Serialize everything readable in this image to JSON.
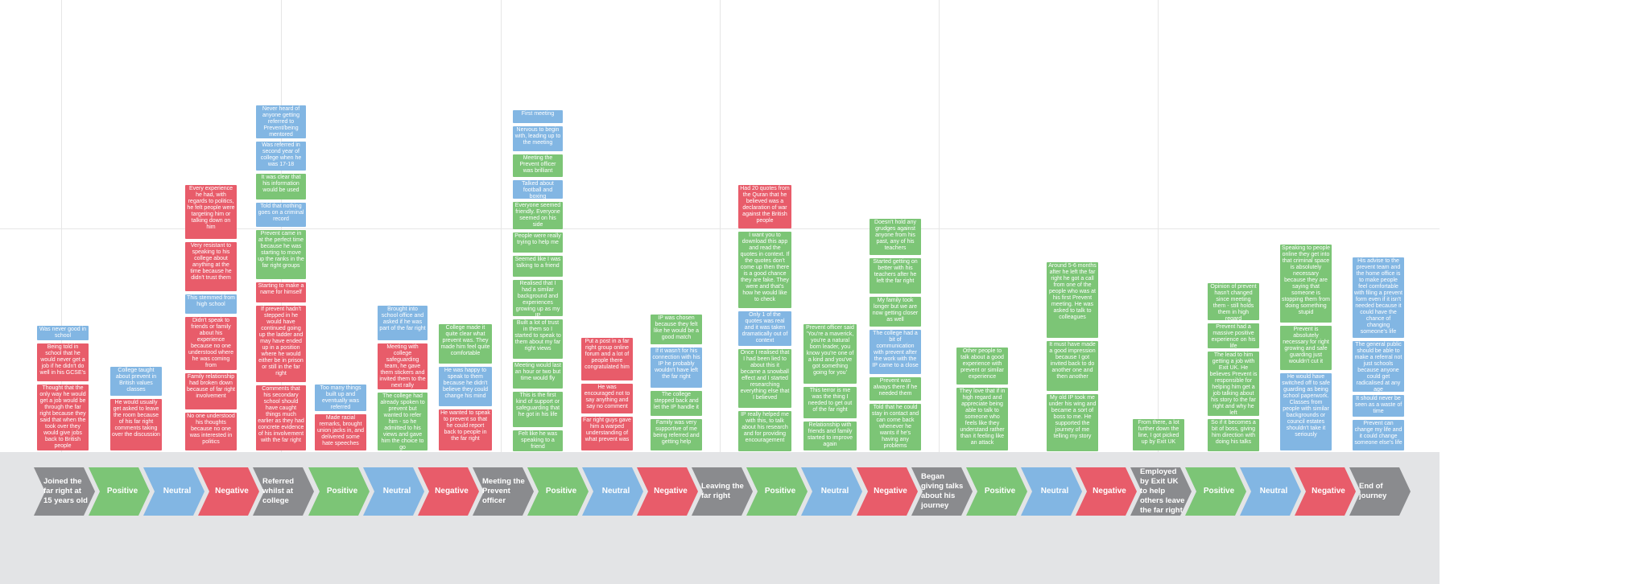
{
  "colors": {
    "positive": "#7cc576",
    "neutral": "#82b6e3",
    "negative": "#e85c6a",
    "stage": "#8a8b8e",
    "band": "#e3e4e6"
  },
  "timeline": [
    {
      "kind": "stage",
      "label": "Joined the far right at 15 years old"
    },
    {
      "kind": "positive",
      "label": "Positive"
    },
    {
      "kind": "neutral",
      "label": "Neutral"
    },
    {
      "kind": "negative",
      "label": "Negative"
    },
    {
      "kind": "stage",
      "label": "Referred whilst at college"
    },
    {
      "kind": "positive",
      "label": "Positive"
    },
    {
      "kind": "neutral",
      "label": "Neutral"
    },
    {
      "kind": "negative",
      "label": "Negative"
    },
    {
      "kind": "stage",
      "label": "Meeting the Prevent officer"
    },
    {
      "kind": "positive",
      "label": "Positive"
    },
    {
      "kind": "neutral",
      "label": "Neutral"
    },
    {
      "kind": "negative",
      "label": "Negative"
    },
    {
      "kind": "stage",
      "label": "Leaving the far right"
    },
    {
      "kind": "positive",
      "label": "Positive"
    },
    {
      "kind": "neutral",
      "label": "Neutral"
    },
    {
      "kind": "negative",
      "label": "Negative"
    },
    {
      "kind": "stage",
      "label": "Began giving talks about his journey"
    },
    {
      "kind": "positive",
      "label": "Positive"
    },
    {
      "kind": "neutral",
      "label": "Neutral"
    },
    {
      "kind": "negative",
      "label": "Negative"
    },
    {
      "kind": "stage",
      "label": "Employed by Exit UK to help others leave the far right"
    },
    {
      "kind": "positive",
      "label": "Positive"
    },
    {
      "kind": "neutral",
      "label": "Neutral"
    },
    {
      "kind": "negative",
      "label": "Negative"
    },
    {
      "kind": "stage",
      "label": "End of journey"
    }
  ],
  "columns": [
    {
      "cards": [
        {
          "s": "b",
          "t": "Was never good in school"
        },
        {
          "s": "r",
          "t": "Being told in school that he would never get a job if he didn't do well in his GCSE's"
        },
        {
          "s": "r",
          "t": "Thought that the only way he would get a job would be through the far right because they said that when the took over they would give jobs back to British people"
        }
      ]
    },
    {
      "cards": [
        {
          "s": "b",
          "t": "College taught about prevent in British values classes"
        },
        {
          "s": "r",
          "t": "He would usually get asked to leave the room because of his far right comments taking over the discussion"
        }
      ]
    },
    {
      "cards": [
        {
          "s": "r",
          "t": "Every experience he had, with regards to politics, he felt people were targeting him or talking down on him"
        },
        {
          "s": "r",
          "t": "Very resistant to speaking to his college about anything at the time because he didn't trust them"
        },
        {
          "s": "b",
          "t": "This stemmed from high school"
        },
        {
          "s": "r",
          "t": "Didn't speak to friends or family about his experience because no one understood where he was coming from"
        },
        {
          "s": "r",
          "t": "Family relationship had broken down because of far right involvement"
        },
        {
          "s": "r",
          "t": "No one understood his thoughts because no one was interested in politics"
        }
      ]
    },
    {
      "cards": [
        {
          "s": "b",
          "t": "Never heard of anyone getting referred to Prevent/being mentored"
        },
        {
          "s": "b",
          "t": "Was referred in second year of college when he was 17-18"
        },
        {
          "s": "g",
          "t": "It was clear that his information would be used"
        },
        {
          "s": "b",
          "t": "Told that nothing goes on a criminal record"
        },
        {
          "s": "g",
          "t": "Prevent came in at the perfect time because he was starting to move up the ranks in the far right groups"
        },
        {
          "s": "r",
          "t": "Starting to make a name for himself"
        },
        {
          "s": "r",
          "t": "If prevent hadn't stepped in he would have continued going up the ladder and may have ended up in a position where he would either be in prison or still in the far right"
        },
        {
          "s": "r",
          "t": "Comments that his secondary school should have caught things much earlier as they had concrete evidence of his involvement with the far right"
        }
      ]
    },
    {
      "cards": [
        {
          "s": "b",
          "t": "Too many things built up and eventually was referred"
        },
        {
          "s": "r",
          "t": "Made racial remarks, brought union jacks in, and delivered some hate speeches"
        }
      ]
    },
    {
      "cards": [
        {
          "s": "b",
          "t": "Brought into school office and asked if he was part of the far right"
        },
        {
          "s": "r",
          "t": "Meeting with college safeguarding team, he gave them stickers and invited them to the next rally"
        },
        {
          "s": "g",
          "t": "The college had already spoken to prevent but wanted to refer him - so he admitted to his views and gave him the choice to go"
        }
      ]
    },
    {
      "cards": [
        {
          "s": "g",
          "t": "College made it quite clear what prevent was. They made him feel quite comfortable"
        },
        {
          "s": "b",
          "t": "He was happy to speak to them because he didn't believe they could change his mind"
        },
        {
          "s": "r",
          "t": "He wanted to speak to prevent so that he could report back to people in the far right"
        }
      ]
    },
    {
      "cards": [
        {
          "s": "b",
          "t": "First meeting"
        },
        {
          "s": "b",
          "t": "Nervous to begin with, leading up to the meeting"
        },
        {
          "s": "g",
          "t": "Meeting the Prevent officer was brilliant"
        },
        {
          "s": "b",
          "t": "Talked about football and boxing"
        },
        {
          "s": "g",
          "t": "Everyone seemed friendly. Everyone seemed on his side"
        },
        {
          "s": "g",
          "t": "People were really trying to help me"
        },
        {
          "s": "g",
          "t": "Seemed like I was talking to a friend"
        },
        {
          "s": "g",
          "t": "Realised that I had a similar background and experiences growing up as my IP"
        },
        {
          "s": "g",
          "t": "Built a lot of trust in them so I started to speak to them about my far right views"
        },
        {
          "s": "g",
          "t": "Meeting would last an hour or two but time would fly"
        },
        {
          "s": "g",
          "t": "This is the first kind of support or safeguarding that he got in his life"
        },
        {
          "s": "g",
          "t": "Felt like he was speaking to a friend"
        }
      ]
    },
    {
      "cards": [
        {
          "s": "r",
          "t": "Put a post in a far right group online forum and a lot of people there congratulated him"
        },
        {
          "s": "r",
          "t": "He was encouraged not to say anything and say no comment"
        },
        {
          "s": "r",
          "t": "Far right guys gave him a warped understanding of what prevent was"
        }
      ]
    },
    {
      "cards": [
        {
          "s": "g",
          "t": "IP was chosen because they felt like he would be a good match"
        },
        {
          "s": "b",
          "t": "If it wasn't for his connection with his IP he probably wouldn't have left the far right"
        },
        {
          "s": "g",
          "t": "The college stepped back and let the IP handle it"
        },
        {
          "s": "g",
          "t": "Family was very supportive of me being referred and getting help"
        }
      ]
    },
    {
      "cards": [
        {
          "s": "r",
          "t": "Had 20 quotes from the Quran that he believed was a declaration of war against the British people"
        },
        {
          "s": "g",
          "t": "I want you to download this app and read the quotes in context. If the quotes don't come up then there is a good chance they are fake. They were and that's how he would like to check"
        },
        {
          "s": "b",
          "t": "Only 1 of the quotes was real and it was taken dramatically out of context"
        },
        {
          "s": "g",
          "t": "Once I realised that I had been lied to about this it became a snowball effect and I started researching everything else that I believed"
        },
        {
          "s": "g",
          "t": "IP really helped me with this, to talk about his research and for providing encouragement"
        }
      ]
    },
    {
      "cards": [
        {
          "s": "g",
          "t": "Prevent officer said 'You're a maverick, you're a natural born leader, you know you're one of a kind and you've got something going for you'"
        },
        {
          "s": "g",
          "t": "This terror is me was the thing I needed to get out of the far right"
        },
        {
          "s": "g",
          "t": "Relationship with friends and family started to improve again"
        }
      ]
    },
    {
      "cards": [
        {
          "s": "g",
          "t": "Doesn't hold any grudges against anyone from his past, any of his teachers"
        },
        {
          "s": "g",
          "t": "Started getting on better with his teachers after he left the far right"
        },
        {
          "s": "g",
          "t": "My family took longer but we are now getting closer as well"
        },
        {
          "s": "b",
          "t": "The college had a bit of communication with prevent after the work with the IP came to a close"
        },
        {
          "s": "g",
          "t": "Prevent was always there if he needed them"
        },
        {
          "s": "g",
          "t": "Told that he could stay in contact and can come back whenever he wants if he's having any problems"
        }
      ]
    },
    {
      "cards": [
        {
          "s": "g",
          "t": "Other people to talk about a good experience with prevent or similar experience"
        },
        {
          "s": "g",
          "t": "They love that if in high regard and appreciate being able to talk to someone who feels like they understand rather than it feeling like an attack"
        }
      ]
    },
    {
      "cards": [
        {
          "s": "g",
          "t": "Around 5-6 months after he left the far right he got a call from one of the people who was at his first Prevent meeting. He was asked to talk to colleagues"
        },
        {
          "s": "g",
          "t": "It must have made a good impression because I got invited back to do another one and then another"
        },
        {
          "s": "g",
          "t": "My old IP took me under his wing and became a sort of boss to me. He supported the journey of me telling my story"
        }
      ]
    },
    {
      "cards": [
        {
          "s": "g",
          "t": "From there, a lot further down the line, I got picked up by Exit UK"
        }
      ]
    },
    {
      "cards": [
        {
          "s": "g",
          "t": "Opinion of prevent hasn't changed since meeting them - still holds them in high regard"
        },
        {
          "s": "g",
          "t": "Prevent had a massive positive experience on his life"
        },
        {
          "s": "g",
          "t": "The lead to him getting a job with Exit UK. He believes Prevent is responsible for helping him get a job talking about his story to the far right and why he left"
        },
        {
          "s": "g",
          "t": "So if it becomes a bit of boss, giving him direction with doing his talks"
        }
      ]
    },
    {
      "cards": [
        {
          "s": "g",
          "t": "Speaking to people online they get into that criminal space is absolutely necessary because they are saying that someone is stopping them from doing something stupid"
        },
        {
          "s": "g",
          "t": "Prevent is absolutely necessary for right growing and safe guarding just wouldn't cut it"
        },
        {
          "s": "b",
          "t": "He would have switched off to safe guarding as being school paperwork. Classes from people with similar backgrounds or council estates shouldn't take it seriously"
        }
      ]
    },
    {
      "cards": [
        {
          "s": "b",
          "t": "His advise to the prevent team and the home office is to make people feel comfortable with filing a prevent form even if it isn't needed because it could have the chance of changing someone's life"
        },
        {
          "s": "b",
          "t": "The general public should be able to make a referral not just schools because anyone could get radicalised at any age"
        },
        {
          "s": "b",
          "t": "It should never be seen as a waste of time"
        },
        {
          "s": "b",
          "t": "Prevent can change my life and it could change someone else's life"
        }
      ]
    }
  ]
}
